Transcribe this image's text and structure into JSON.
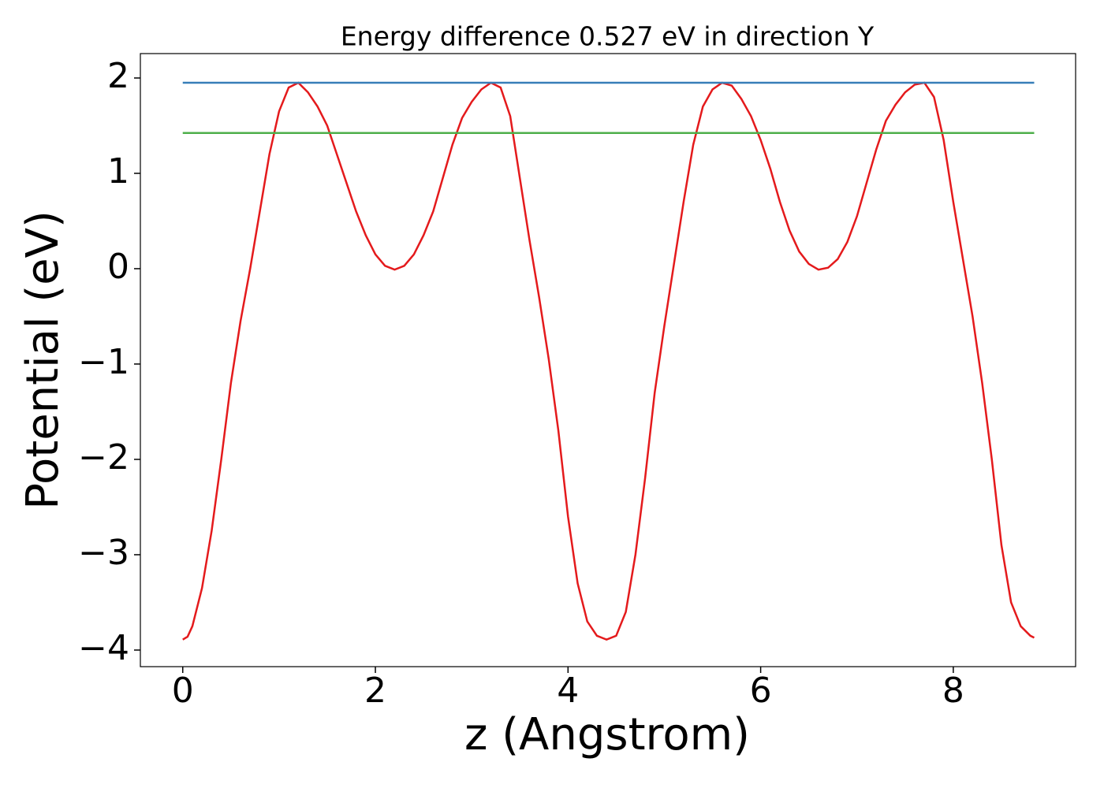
{
  "chart_data": {
    "type": "line",
    "title": "Energy difference 0.527 eV in direction Y",
    "x_label": "z (Angstrom)",
    "y_label": "Potential (eV)",
    "xlim": [
      -0.44,
      9.27
    ],
    "ylim": [
      -4.174,
      2.256
    ],
    "xticks": [
      0,
      2,
      4,
      6,
      8
    ],
    "yticks": [
      {
        "value": -4,
        "label": "−4"
      },
      {
        "value": -3,
        "label": "−3"
      },
      {
        "value": -2,
        "label": "−2"
      },
      {
        "value": -1,
        "label": "−1"
      },
      0,
      1,
      2
    ],
    "series": [
      {
        "color": "#e41a1c",
        "x": [
          0,
          0.05,
          0.1,
          0.2,
          0.3,
          0.4,
          0.5,
          0.6,
          0.7,
          0.8,
          0.9,
          1.0,
          1.1,
          1.2,
          1.3,
          1.4,
          1.5,
          1.6,
          1.7,
          1.8,
          1.9,
          2.0,
          2.1,
          2.2,
          2.3,
          2.4,
          2.5,
          2.6,
          2.7,
          2.8,
          2.9,
          3.0,
          3.1,
          3.2,
          3.3,
          3.4,
          3.5,
          3.6,
          3.7,
          3.8,
          3.9,
          4.0,
          4.1,
          4.2,
          4.3,
          4.4,
          4.5,
          4.6,
          4.7,
          4.8,
          4.9,
          5.0,
          5.1,
          5.2,
          5.3,
          5.4,
          5.5,
          5.6,
          5.7,
          5.8,
          5.9,
          6.0,
          6.1,
          6.2,
          6.3,
          6.4,
          6.5,
          6.6,
          6.7,
          6.8,
          6.9,
          7.0,
          7.1,
          7.2,
          7.3,
          7.4,
          7.5,
          7.6,
          7.7,
          7.8,
          7.9,
          8.0,
          8.1,
          8.2,
          8.3,
          8.4,
          8.5,
          8.6,
          8.7,
          8.8,
          8.84
        ],
        "values": [
          -3.89,
          -3.86,
          -3.75,
          -3.35,
          -2.75,
          -2.0,
          -1.2,
          -0.55,
          0.0,
          0.6,
          1.2,
          1.65,
          1.9,
          1.95,
          1.85,
          1.7,
          1.5,
          1.2,
          0.9,
          0.6,
          0.35,
          0.15,
          0.03,
          -0.01,
          0.03,
          0.15,
          0.35,
          0.6,
          0.95,
          1.3,
          1.58,
          1.75,
          1.88,
          1.95,
          1.9,
          1.6,
          0.95,
          0.3,
          -0.3,
          -0.95,
          -1.7,
          -2.6,
          -3.3,
          -3.7,
          -3.85,
          -3.89,
          -3.85,
          -3.6,
          -3.0,
          -2.2,
          -1.3,
          -0.6,
          0.05,
          0.7,
          1.3,
          1.7,
          1.88,
          1.95,
          1.92,
          1.78,
          1.6,
          1.35,
          1.05,
          0.7,
          0.4,
          0.18,
          0.05,
          -0.01,
          0.01,
          0.1,
          0.28,
          0.55,
          0.9,
          1.25,
          1.55,
          1.72,
          1.85,
          1.93,
          1.95,
          1.8,
          1.35,
          0.7,
          0.1,
          -0.5,
          -1.2,
          -2.0,
          -2.9,
          -3.5,
          -3.75,
          -3.85,
          -3.87
        ]
      },
      {
        "color": "#377eb8",
        "x": [
          0,
          8.84
        ],
        "values": [
          1.95,
          1.95
        ]
      },
      {
        "color": "#4daf4a",
        "x": [
          0,
          8.84
        ],
        "values": [
          1.423,
          1.423
        ]
      }
    ]
  }
}
